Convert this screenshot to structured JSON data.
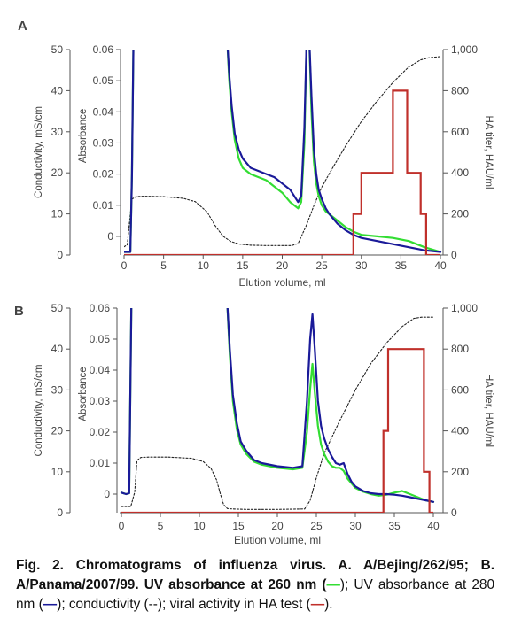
{
  "caption": {
    "prefix": "Fig. 2. Chromatograms of influenza virus. A. A/Bejing/262/95; B. A/Panama/2007/99. UV absorbance at 260 nm (",
    "key_260": "—",
    "mid1": "); UV absorbance at 280 nm (",
    "key_280": "—",
    "mid2": "); conductivity (--); viral activity in HA test (",
    "key_ha": "—",
    "suffix": ")."
  },
  "colors": {
    "uv260": "#33dd33",
    "uv280": "#1a1a99",
    "conductivity": "#222222",
    "ha": "#c0302b",
    "axis": "#555555"
  },
  "chart_data": [
    {
      "panel_label": "A",
      "type": "line",
      "xlabel": "Elution volume, ml",
      "xlim": [
        0,
        40
      ],
      "x_ticks": [
        0,
        5,
        10,
        15,
        20,
        25,
        30,
        35,
        40
      ],
      "left_axis_label": "Conductivity, mS/cm",
      "left_axis_ticks": [
        0,
        10,
        20,
        30,
        40,
        50
      ],
      "left_axis_lim": [
        0,
        50
      ],
      "absorbance_axis_label": "Absorbance",
      "absorbance_ticks": [
        "0",
        "0.01",
        "0.02",
        "0.03",
        "0.04",
        "0.05",
        "0.06"
      ],
      "absorbance_lim": [
        -0.006,
        0.06
      ],
      "right_axis_label": "HA titer, HAU/ml",
      "right_axis_ticks": [
        "0",
        "200",
        "400",
        "600",
        "800",
        "1,000"
      ],
      "right_axis_lim": [
        0,
        1000
      ],
      "series": [
        {
          "key": "uv260",
          "axis": "absorbance",
          "x": [
            0,
            0.8,
            1.0,
            1.2,
            1.4,
            13.0,
            13.3,
            13.6,
            14.0,
            14.5,
            15,
            16,
            17,
            18,
            19,
            20,
            21,
            22,
            22.4,
            22.8,
            23.1,
            23.4,
            23.7,
            24.0,
            24.3,
            24.6,
            25,
            25.5,
            26,
            27,
            28,
            29,
            30,
            32,
            34,
            36,
            38,
            40
          ],
          "y": [
            -0.005,
            -0.005,
            0.02,
            0.065,
            0.065,
            0.065,
            0.05,
            0.04,
            0.031,
            0.025,
            0.022,
            0.02,
            0.019,
            0.018,
            0.016,
            0.014,
            0.011,
            0.009,
            0.011,
            0.03,
            0.065,
            0.065,
            0.04,
            0.024,
            0.017,
            0.013,
            0.01,
            0.008,
            0.007,
            0.005,
            0.003,
            0.0015,
            0.0005,
            0.0,
            -0.0005,
            -0.0015,
            -0.0035,
            -0.005
          ]
        },
        {
          "key": "uv280",
          "axis": "absorbance",
          "x": [
            0,
            0.8,
            1.0,
            1.2,
            1.4,
            13.0,
            13.3,
            13.6,
            14.0,
            14.5,
            15,
            16,
            17,
            18,
            19,
            20,
            21,
            22,
            22.4,
            22.8,
            23.1,
            23.4,
            23.7,
            24.0,
            24.3,
            24.6,
            25,
            25.5,
            26,
            27,
            28,
            29,
            30,
            32,
            34,
            36,
            38,
            40
          ],
          "y": [
            -0.005,
            -0.005,
            0.02,
            0.065,
            0.065,
            0.065,
            0.052,
            0.042,
            0.033,
            0.028,
            0.025,
            0.022,
            0.021,
            0.02,
            0.019,
            0.017,
            0.015,
            0.011,
            0.013,
            0.035,
            0.065,
            0.065,
            0.045,
            0.028,
            0.02,
            0.015,
            0.012,
            0.009,
            0.007,
            0.004,
            0.002,
            0.0005,
            -0.0005,
            -0.0015,
            -0.0025,
            -0.0035,
            -0.0045,
            -0.005
          ]
        },
        {
          "key": "conductivity",
          "axis": "conductivity",
          "x": [
            0,
            0.4,
            0.8,
            1.0,
            1.5,
            2.5,
            5,
            7.5,
            9,
            10.5,
            11.5,
            12.5,
            13.5,
            14.5,
            16,
            18,
            20,
            21.2,
            22,
            23,
            24,
            25,
            26,
            28,
            30,
            32,
            34,
            36,
            37.5,
            38.5,
            40
          ],
          "y": [
            2,
            2.5,
            10,
            13.6,
            14.2,
            14.3,
            14.2,
            13.8,
            13.0,
            10.5,
            7.2,
            4.6,
            3.3,
            2.7,
            2.4,
            2.3,
            2.3,
            2.3,
            2.8,
            7,
            12,
            16.5,
            20,
            26.5,
            32.5,
            37.5,
            42,
            45.8,
            47.5,
            48,
            48.3
          ]
        },
        {
          "key": "ha",
          "axis": "ha_titer",
          "x": [
            0,
            29,
            29,
            30,
            30,
            32,
            32,
            34,
            34,
            35.8,
            35.8,
            37.5,
            37.5,
            38.2,
            38.2,
            40
          ],
          "y": [
            0,
            0,
            200,
            200,
            400,
            400,
            400,
            400,
            800,
            800,
            400,
            400,
            200,
            200,
            0,
            0
          ]
        }
      ]
    },
    {
      "panel_label": "B",
      "type": "line",
      "xlabel": "Elution volume, ml",
      "xlim": [
        0,
        40
      ],
      "x_ticks": [
        0,
        5,
        10,
        15,
        20,
        25,
        30,
        35,
        40
      ],
      "left_axis_label": "Conductivity, mS/cm",
      "left_axis_ticks": [
        0,
        10,
        20,
        30,
        40,
        50
      ],
      "left_axis_lim": [
        0,
        50
      ],
      "absorbance_axis_label": "Absorbance",
      "absorbance_ticks": [
        "0",
        "0.01",
        "0.02",
        "0.03",
        "0.04",
        "0.05",
        "0.06"
      ],
      "absorbance_lim": [
        -0.006,
        0.06
      ],
      "right_axis_label": "HA titer, HAU/ml",
      "right_axis_ticks": [
        "0",
        "200",
        "400",
        "600",
        "800",
        "1,000"
      ],
      "right_axis_lim": [
        0,
        1000
      ],
      "series": [
        {
          "key": "uv260",
          "axis": "absorbance",
          "x": [
            0,
            0.6,
            1.0,
            1.3,
            1.6,
            13.5,
            13.9,
            14.3,
            14.8,
            15.3,
            16,
            17,
            18,
            20,
            22,
            23.2,
            23.8,
            24.2,
            24.5,
            24.8,
            25.2,
            25.6,
            26,
            26.5,
            27,
            27.5,
            28,
            28.5,
            29,
            29.5,
            30,
            31,
            32,
            33,
            34,
            35,
            36,
            37,
            38,
            39,
            40
          ],
          "y": [
            0.0005,
            0.0,
            0.0003,
            0.065,
            0.065,
            0.065,
            0.045,
            0.03,
            0.021,
            0.016,
            0.013,
            0.0105,
            0.0095,
            0.0085,
            0.008,
            0.0085,
            0.02,
            0.034,
            0.042,
            0.033,
            0.022,
            0.016,
            0.013,
            0.0105,
            0.009,
            0.0085,
            0.0085,
            0.0075,
            0.005,
            0.0035,
            0.002,
            0.0008,
            0.0,
            -0.0005,
            -0.0002,
            0.0005,
            0.001,
            0.0,
            -0.001,
            -0.002,
            -0.0025
          ]
        },
        {
          "key": "uv280",
          "axis": "absorbance",
          "x": [
            0,
            0.6,
            1.0,
            1.3,
            1.6,
            13.5,
            13.9,
            14.3,
            14.8,
            15.3,
            16,
            17,
            18,
            20,
            22,
            23.2,
            23.8,
            24.2,
            24.5,
            24.8,
            25.2,
            25.6,
            26,
            26.5,
            27,
            27.5,
            28,
            28.5,
            29,
            29.5,
            30,
            31,
            32,
            33,
            34,
            35,
            36,
            37,
            38,
            39,
            40
          ],
          "y": [
            0.0005,
            0.0,
            0.0003,
            0.065,
            0.065,
            0.065,
            0.047,
            0.032,
            0.023,
            0.017,
            0.014,
            0.011,
            0.01,
            0.009,
            0.0085,
            0.009,
            0.03,
            0.05,
            0.058,
            0.047,
            0.03,
            0.022,
            0.018,
            0.0145,
            0.012,
            0.01,
            0.0095,
            0.01,
            0.0065,
            0.004,
            0.0025,
            0.001,
            0.0003,
            0.0,
            0.0,
            -0.0002,
            -0.0005,
            -0.001,
            -0.0015,
            -0.002,
            -0.0025
          ]
        },
        {
          "key": "conductivity",
          "axis": "conductivity",
          "x": [
            0,
            1.2,
            1.7,
            2.0,
            2.5,
            3.5,
            6,
            9,
            10.5,
            11.5,
            12.2,
            12.7,
            13.1,
            13.6,
            14.2,
            16,
            20,
            23.5,
            24.2,
            25,
            26,
            28,
            30,
            32,
            34,
            36,
            37.5,
            38.5,
            40
          ],
          "y": [
            1.5,
            1.5,
            5,
            12.8,
            13.5,
            13.6,
            13.6,
            13.3,
            12.5,
            10.8,
            8.0,
            4.5,
            2.0,
            1.0,
            0.9,
            0.8,
            0.8,
            0.9,
            3.0,
            8.5,
            14.5,
            22.5,
            30,
            36.5,
            41.5,
            45.5,
            47.5,
            47.8,
            47.8
          ]
        },
        {
          "key": "ha",
          "axis": "ha_titer",
          "x": [
            0,
            33.6,
            33.6,
            34.2,
            34.2,
            38.8,
            38.8,
            39.5,
            39.5,
            40
          ],
          "y": [
            0,
            0,
            400,
            400,
            800,
            800,
            200,
            200,
            0,
            0
          ]
        }
      ]
    }
  ]
}
